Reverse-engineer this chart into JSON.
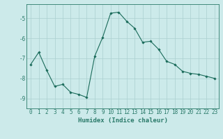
{
  "x": [
    0,
    1,
    2,
    3,
    4,
    5,
    6,
    7,
    8,
    9,
    10,
    11,
    12,
    13,
    14,
    15,
    16,
    17,
    18,
    19,
    20,
    21,
    22,
    23
  ],
  "y": [
    -7.3,
    -6.7,
    -7.6,
    -8.4,
    -8.3,
    -8.7,
    -8.8,
    -8.95,
    -6.9,
    -5.95,
    -4.75,
    -4.7,
    -5.15,
    -5.5,
    -6.2,
    -6.15,
    -6.55,
    -7.15,
    -7.3,
    -7.65,
    -7.75,
    -7.8,
    -7.9,
    -8.0
  ],
  "xlabel": "Humidex (Indice chaleur)",
  "ylim": [
    -9.5,
    -4.3
  ],
  "xlim": [
    -0.5,
    23.5
  ],
  "yticks": [
    -9,
    -8,
    -7,
    -6,
    -5
  ],
  "xticks": [
    0,
    1,
    2,
    3,
    4,
    5,
    6,
    7,
    8,
    9,
    10,
    11,
    12,
    13,
    14,
    15,
    16,
    17,
    18,
    19,
    20,
    21,
    22,
    23
  ],
  "line_color": "#1a6b5a",
  "marker": "D",
  "marker_size": 1.8,
  "bg_color": "#cceaea",
  "grid_color": "#aad0d0",
  "axis_color": "#2a7a6a",
  "tick_label_fontsize": 5.5,
  "xlabel_fontsize": 6.5
}
